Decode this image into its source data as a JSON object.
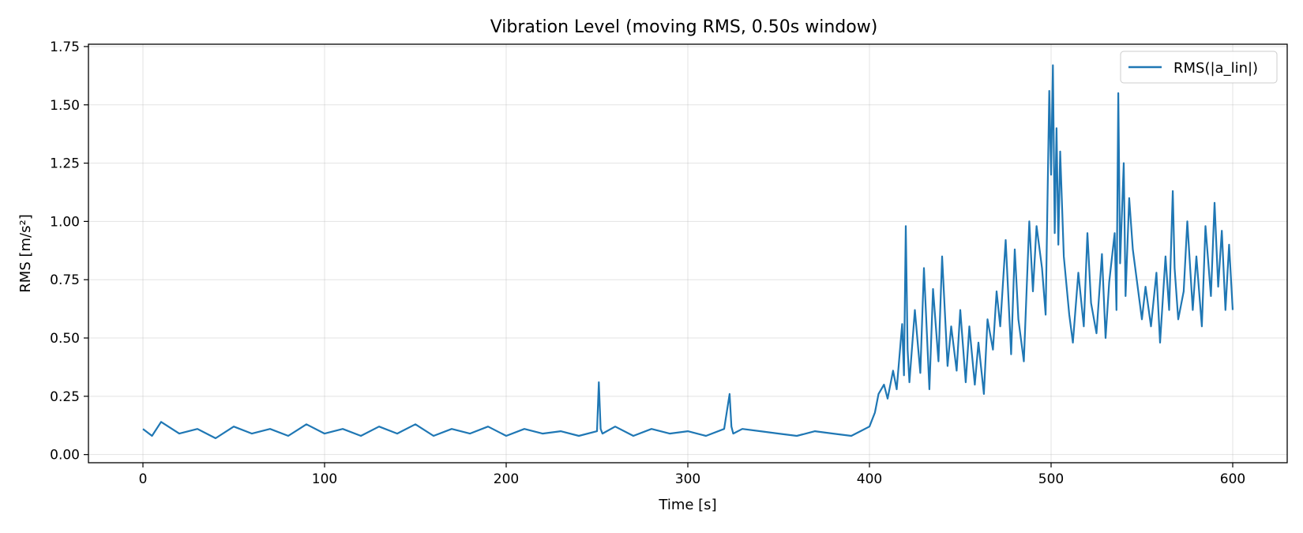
{
  "chart_data": {
    "type": "line",
    "title": "Vibration Level (moving RMS, 0.50s window)",
    "xlabel": "Time [s]",
    "ylabel": "RMS [m/s²]",
    "xlim": [
      -30,
      630
    ],
    "ylim": [
      -0.035,
      1.76
    ],
    "xticks": [
      0,
      100,
      200,
      300,
      400,
      500,
      600
    ],
    "yticks": [
      0.0,
      0.25,
      0.5,
      0.75,
      1.0,
      1.25,
      1.5,
      1.75
    ],
    "xtick_labels": [
      "0",
      "100",
      "200",
      "300",
      "400",
      "500",
      "600"
    ],
    "ytick_labels": [
      "0.00",
      "0.25",
      "0.50",
      "0.75",
      "1.00",
      "1.25",
      "1.50",
      "1.75"
    ],
    "grid": true,
    "legend_position": "top-right",
    "series": [
      {
        "name": "RMS(|a_lin|)",
        "color": "#1f77b4",
        "x": [
          0,
          5,
          10,
          20,
          30,
          40,
          50,
          60,
          70,
          80,
          90,
          100,
          110,
          120,
          130,
          140,
          150,
          160,
          170,
          180,
          190,
          200,
          210,
          220,
          230,
          240,
          250,
          251,
          252,
          253,
          260,
          270,
          280,
          290,
          300,
          310,
          320,
          323,
          324,
          325,
          330,
          340,
          350,
          360,
          370,
          380,
          390,
          395,
          400,
          403,
          405,
          408,
          410,
          413,
          415,
          418,
          419,
          420,
          421,
          422,
          425,
          428,
          430,
          433,
          435,
          438,
          440,
          443,
          445,
          448,
          450,
          453,
          455,
          458,
          460,
          463,
          465,
          468,
          470,
          472,
          475,
          478,
          480,
          482,
          485,
          488,
          490,
          492,
          495,
          497,
          499,
          500,
          501,
          502,
          503,
          504,
          505,
          507,
          510,
          512,
          515,
          518,
          520,
          522,
          525,
          528,
          530,
          532,
          535,
          536,
          537,
          538,
          540,
          541,
          543,
          545,
          548,
          550,
          552,
          555,
          558,
          560,
          563,
          565,
          567,
          568,
          570,
          573,
          575,
          578,
          580,
          583,
          585,
          588,
          590,
          592,
          594,
          596,
          598,
          600
        ],
        "values": [
          0.11,
          0.08,
          0.14,
          0.09,
          0.11,
          0.07,
          0.12,
          0.09,
          0.11,
          0.08,
          0.13,
          0.09,
          0.11,
          0.08,
          0.12,
          0.09,
          0.13,
          0.08,
          0.11,
          0.09,
          0.12,
          0.08,
          0.11,
          0.09,
          0.1,
          0.08,
          0.1,
          0.31,
          0.11,
          0.09,
          0.12,
          0.08,
          0.11,
          0.09,
          0.1,
          0.08,
          0.11,
          0.26,
          0.12,
          0.09,
          0.11,
          0.1,
          0.09,
          0.08,
          0.1,
          0.09,
          0.08,
          0.1,
          0.12,
          0.18,
          0.26,
          0.3,
          0.24,
          0.36,
          0.28,
          0.56,
          0.34,
          0.98,
          0.45,
          0.31,
          0.62,
          0.35,
          0.8,
          0.28,
          0.71,
          0.4,
          0.85,
          0.38,
          0.55,
          0.36,
          0.62,
          0.31,
          0.55,
          0.3,
          0.48,
          0.26,
          0.58,
          0.45,
          0.7,
          0.55,
          0.92,
          0.43,
          0.88,
          0.58,
          0.4,
          1.0,
          0.7,
          0.98,
          0.8,
          0.6,
          1.56,
          1.2,
          1.67,
          0.95,
          1.4,
          0.9,
          1.3,
          0.85,
          0.6,
          0.48,
          0.78,
          0.55,
          0.95,
          0.65,
          0.52,
          0.86,
          0.5,
          0.74,
          0.95,
          0.62,
          1.55,
          0.82,
          1.25,
          0.68,
          1.1,
          0.88,
          0.7,
          0.58,
          0.72,
          0.55,
          0.78,
          0.48,
          0.85,
          0.62,
          1.13,
          0.8,
          0.58,
          0.7,
          1.0,
          0.62,
          0.85,
          0.55,
          0.98,
          0.68,
          1.08,
          0.72,
          0.96,
          0.62,
          0.9,
          0.62
        ]
      }
    ]
  }
}
